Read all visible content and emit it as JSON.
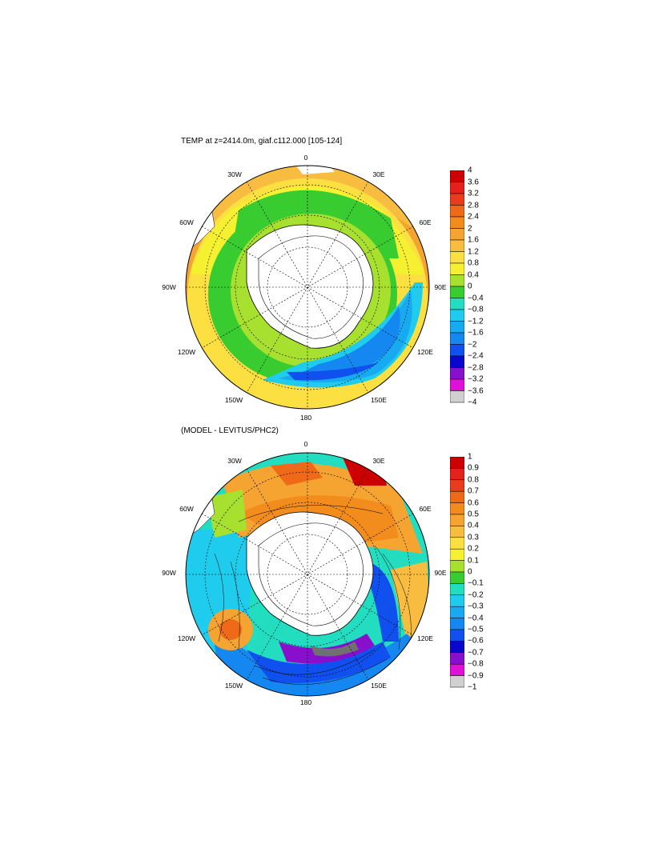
{
  "panels": [
    {
      "id": "top",
      "title": "TEMP at z=2414.0m, giaf.c112.000 [105-124]",
      "labels": {
        "top": "0",
        "w30": "30W",
        "e30": "30E",
        "w60": "60W",
        "e60": "60E",
        "w90": "90W",
        "e90": "90E",
        "w120": "120W",
        "e120": "120E",
        "w150": "150W",
        "e150": "150E",
        "bottom": "180"
      },
      "colorbar": {
        "ticks": [
          "4",
          "3.6",
          "3.2",
          "2.8",
          "2.4",
          "2",
          "1.6",
          "1.2",
          "0.8",
          "0.4",
          "0",
          "−0.4",
          "−0.8",
          "−1.2",
          "−1.6",
          "−2",
          "−2.4",
          "−2.8",
          "−3.2",
          "−3.6",
          "−4"
        ],
        "colors": [
          "#cc0000",
          "#e8201c",
          "#e83c1c",
          "#ee6a18",
          "#f28c1c",
          "#f5a431",
          "#f8bd40",
          "#fce042",
          "#f5f030",
          "#a8e030",
          "#38cc30",
          "#22ddc0",
          "#20ccee",
          "#18aaf0",
          "#1488f0",
          "#1050ee",
          "#0808cc",
          "#8810cc",
          "#e010d8",
          "#d0d0d0",
          "#707070"
        ]
      }
    },
    {
      "id": "bottom",
      "title": "(MODEL - LEVITUS/PHC2)",
      "labels": {
        "top": "0",
        "w30": "30W",
        "e30": "30E",
        "w60": "60W",
        "e60": "60E",
        "w90": "90W",
        "e90": "90E",
        "w120": "120W",
        "e120": "120E",
        "w150": "150W",
        "e150": "150E",
        "bottom": "180"
      },
      "colorbar": {
        "ticks": [
          "1",
          "0.9",
          "0.8",
          "0.7",
          "0.6",
          "0.5",
          "0.4",
          "0.3",
          "0.2",
          "0.1",
          "0",
          "−0.1",
          "−0.2",
          "−0.3",
          "−0.4",
          "−0.5",
          "−0.6",
          "−0.7",
          "−0.8",
          "−0.9",
          "−1"
        ],
        "colors": [
          "#cc0000",
          "#e8201c",
          "#e83c1c",
          "#ee6a18",
          "#f28c1c",
          "#f5a431",
          "#f8bd40",
          "#fce042",
          "#f5f030",
          "#a8e030",
          "#38cc30",
          "#22ddc0",
          "#20ccee",
          "#18aaf0",
          "#1488f0",
          "#1050ee",
          "#0808cc",
          "#8810cc",
          "#e010d8",
          "#d0d0d0",
          "#707070"
        ]
      }
    }
  ]
}
